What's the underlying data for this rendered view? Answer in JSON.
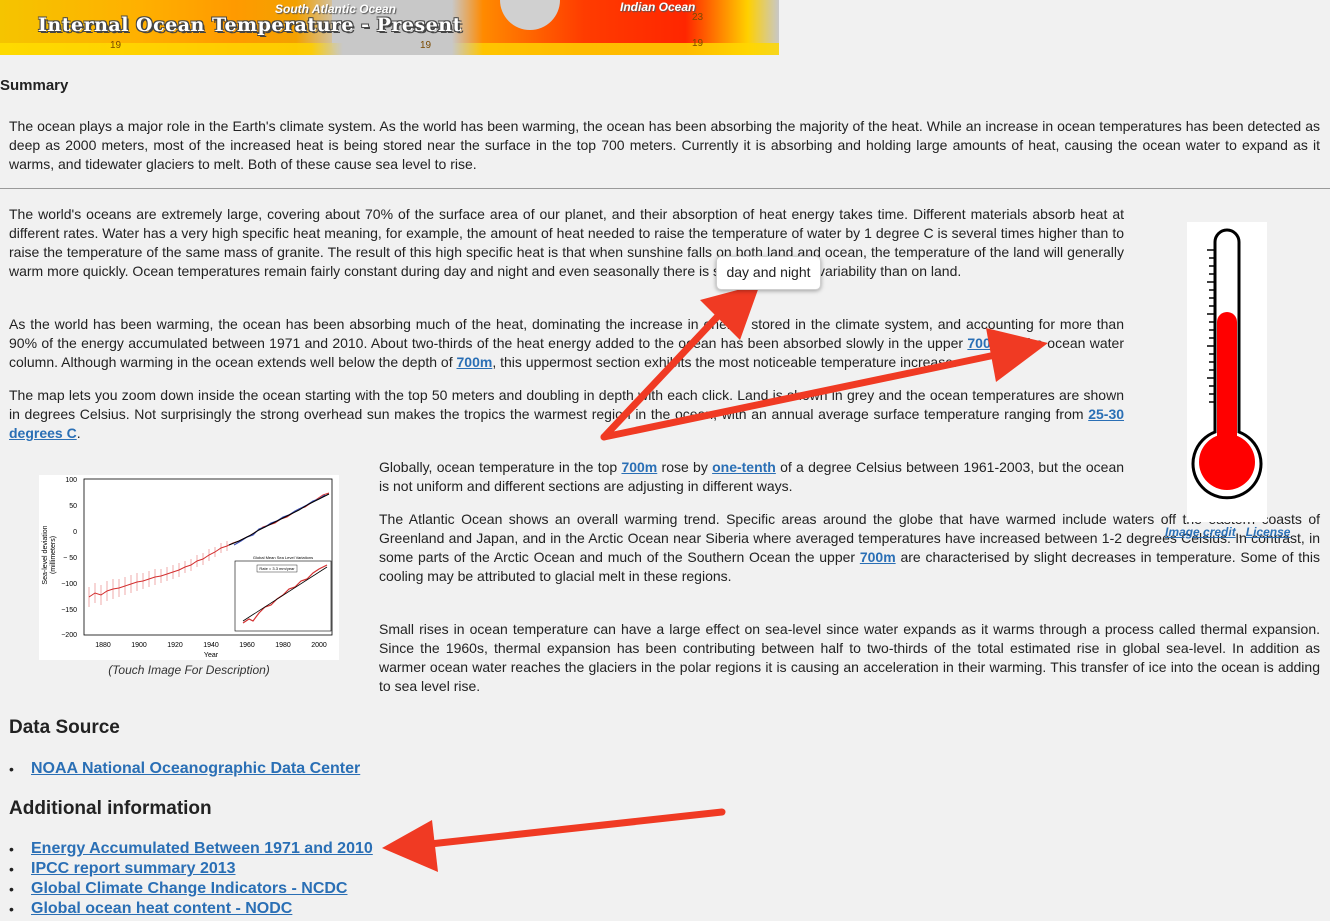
{
  "banner": {
    "title": "Internal Ocean Temperature - Present",
    "label_south_atlantic": "South Atlantic Ocean",
    "label_indian": "Indian Ocean",
    "isotherm_1": "19",
    "isotherm_2": "19",
    "isotherm_3": "23",
    "isotherm_4": "19"
  },
  "summary": {
    "heading": "Summary",
    "text": "The ocean plays a major role in the Earth's climate system. As the world has been warming, the ocean has been absorbing the majority of the heat. While an increase in ocean temperatures has been detected as deep as 2000 meters, most of the increased heat is being stored near the surface in the top 700 meters. Currently it is absorbing and holding large amounts of heat, causing the ocean water to expand as it warms, and tidewater glaciers to melt. Both of these cause sea level to rise."
  },
  "body": {
    "p1_a": "The world's oceans are extremely large, covering about 70% of the surface area of our planet, and their absorption of heat energy takes time. Different materials absorb heat at different rates. Water has a very high specific heat meaning, for example, the amount of heat needed to raise the temperature of water by 1 degree C is several times higher than to raise the temperature of the same mass of granite. The result of this high specific heat is that when sunshine falls on both land and ocean, the temperature of the land will generally warm more quickly. Ocean temperatures remain fairly constant during",
    "p1_highlight": "day and night",
    "p1_b": "and even seasonally there is significantly less variability than on land.",
    "p2_a": "As the world has been warming, the ocean has been absorbing much of the heat, dominating the increase in energy stored in the climate system, and accounting for more than 90% of the energy accumulated between 1971 and 2010. About two-thirds of the heat energy added to the ocean has been absorbed slowly in the upper",
    "p2_link1": "700m",
    "p2_b": "of the ocean water column. Although warming in the ocean extends well below the depth of",
    "p2_link2": "700m",
    "p2_c": ", this uppermost section exhibits the most noticeable temperature increase.",
    "p3_a": "The map lets you zoom down inside the ocean starting with the top 50 meters and doubling in depth with each click. Land is shown in grey and the ocean temperatures are shown in degrees Celsius. Not surprisingly the strong overhead sun makes the tropics the warmest region in the ocean, with an annual average surface temperature ranging from",
    "p3_link": "25-30 degrees C",
    "p3_b": ".",
    "p4_a": "Globally, ocean temperature in the top",
    "p4_link1": "700m",
    "p4_b": "rose by",
    "p4_link2": "one-tenth",
    "p4_c": "of a degree Celsius between 1961-2003, but the ocean is not uniform and different sections are adjusting in different ways.",
    "p5_a": "The Atlantic Ocean shows an overall warming trend. Specific areas around the globe that have warmed include waters off the eastern coasts of Greenland and Japan, and in the Arctic Ocean near Siberia where averaged temperatures have increased between 1-2 degrees Celsius. In contrast, in some parts of the Arctic Ocean and much of the Southern Ocean the upper",
    "p5_link": "700m",
    "p5_b": "are characterised by slight decreases in temperature. Some of this cooling may be attributed to glacial melt in these regions.",
    "p6": "Small rises in ocean temperature can have a large effect on sea-level since water expands as it warms through a process called thermal expansion. Since the 1960s, thermal expansion has been contributing between half to two-thirds of the total estimated rise in global sea-level. In addition as warmer ocean water reaches the glaciers in the polar regions it is causing an acceleration in their warming. This transfer of ice into the ocean is adding to sea level rise."
  },
  "thermometer": {
    "credit_link": "Image credit",
    "separator": ",",
    "license_link": "License",
    "colors": {
      "mercury": "#ff0000",
      "outline": "#000000"
    }
  },
  "figure": {
    "caption": "(Touch Image For Description)",
    "ylabel_1": "Sea-level deviation",
    "ylabel_2": "(millimeters)",
    "xlabel": "Year",
    "y_ticks": [
      "100",
      "50",
      "0",
      "− 50",
      "−100",
      "−150",
      "−200"
    ],
    "x_ticks": [
      "1880",
      "1900",
      "1920",
      "1940",
      "1960",
      "1980",
      "2000"
    ],
    "inset_title": "Global Mean Sea Level Variations",
    "inset_rate": "Rate = 3.3 mm/year"
  },
  "tooltip": {
    "text": "day and night"
  },
  "data_source": {
    "heading": "Data Source",
    "links": [
      "NOAA National Oceanographic Data Center"
    ]
  },
  "additional": {
    "heading": "Additional information",
    "links": [
      "Energy Accumulated Between 1971 and 2010",
      "IPCC report summary 2013",
      "Global Climate Change Indicators - NCDC",
      "Global ocean heat content - NODC"
    ]
  },
  "annotation_color": "#f03a23"
}
